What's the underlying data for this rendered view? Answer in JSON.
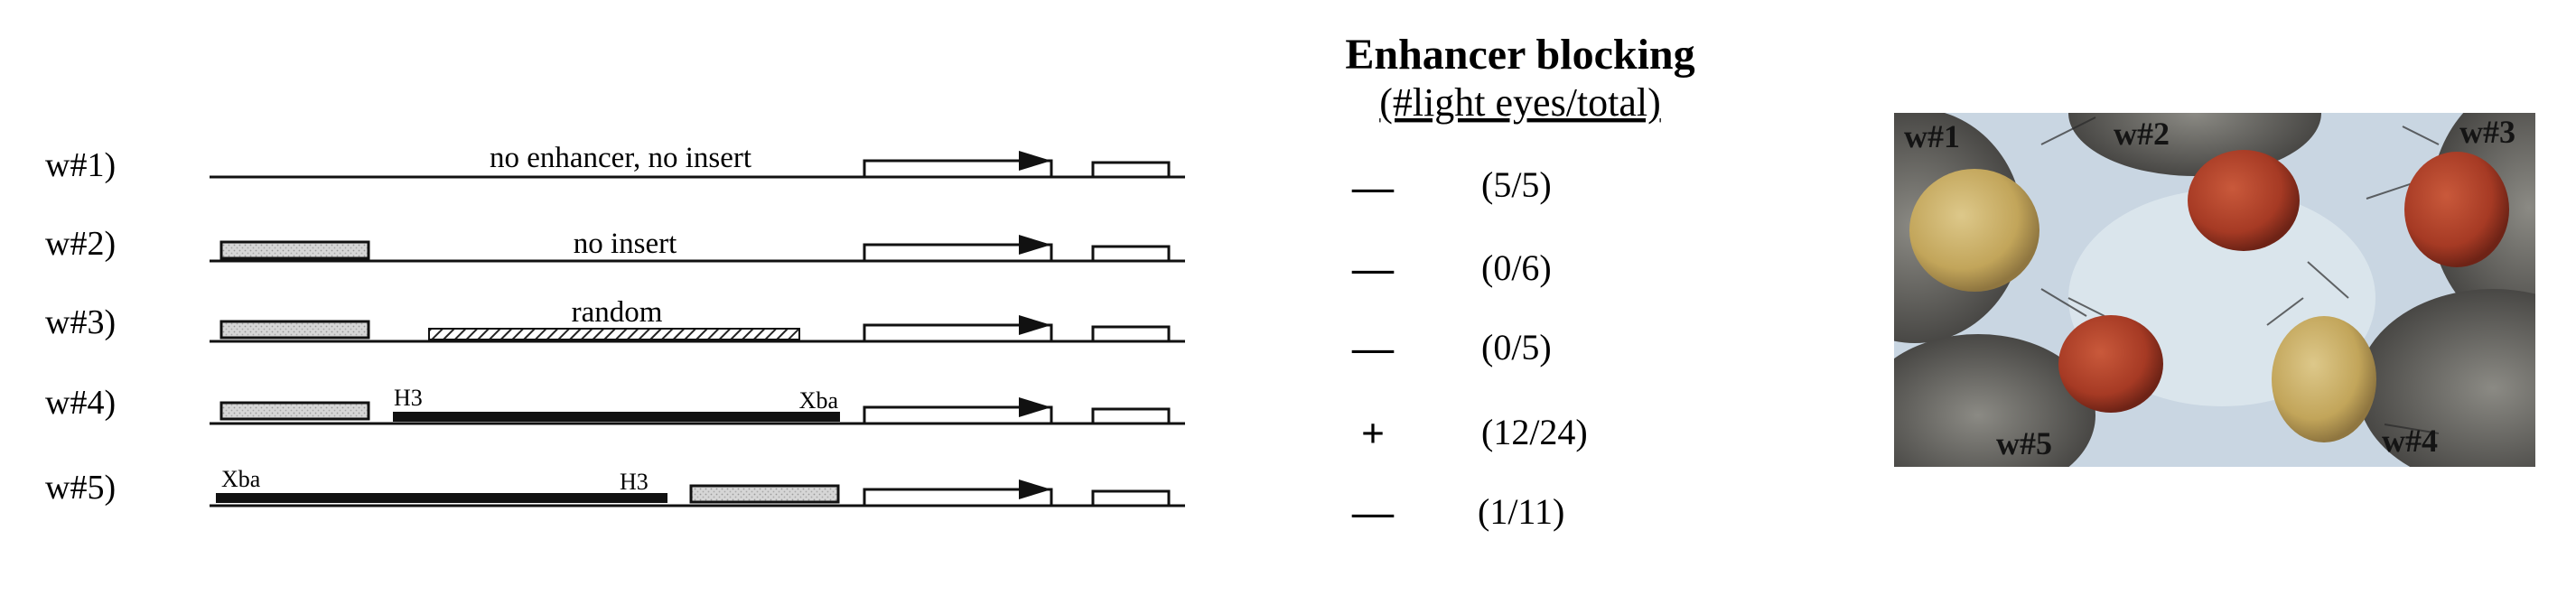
{
  "constructs": [
    {
      "label": "w#1)",
      "note": "no enhancer, no insert",
      "symbol": "—",
      "ratio": "(5/5)"
    },
    {
      "label": "w#2)",
      "note": "no insert",
      "symbol": "—",
      "ratio": "(0/6)"
    },
    {
      "label": "w#3)",
      "note": "random",
      "symbol": "—",
      "ratio": "(0/5)"
    },
    {
      "label": "w#4)",
      "note": "",
      "site_left": "H3",
      "site_right": "Xba",
      "symbol": "+",
      "ratio": "(12/24)"
    },
    {
      "label": "w#5)",
      "note": "",
      "site_left": "Xba",
      "site_right": "H3",
      "symbol": "—",
      "ratio": "(1/11)"
    }
  ],
  "header": {
    "title": "Enhancer blocking",
    "subtitle": "(#light eyes/total)"
  },
  "photo": {
    "labels": [
      "w#1",
      "w#2",
      "w#3",
      "w#5",
      "w#4"
    ]
  },
  "colors": {
    "enhancer_fill": "#d4d4d4",
    "insert_fill": "#111111",
    "light_eye": "#c7ad62",
    "red_eye": "#b0402a",
    "photo_background": "#c9d6e2"
  }
}
